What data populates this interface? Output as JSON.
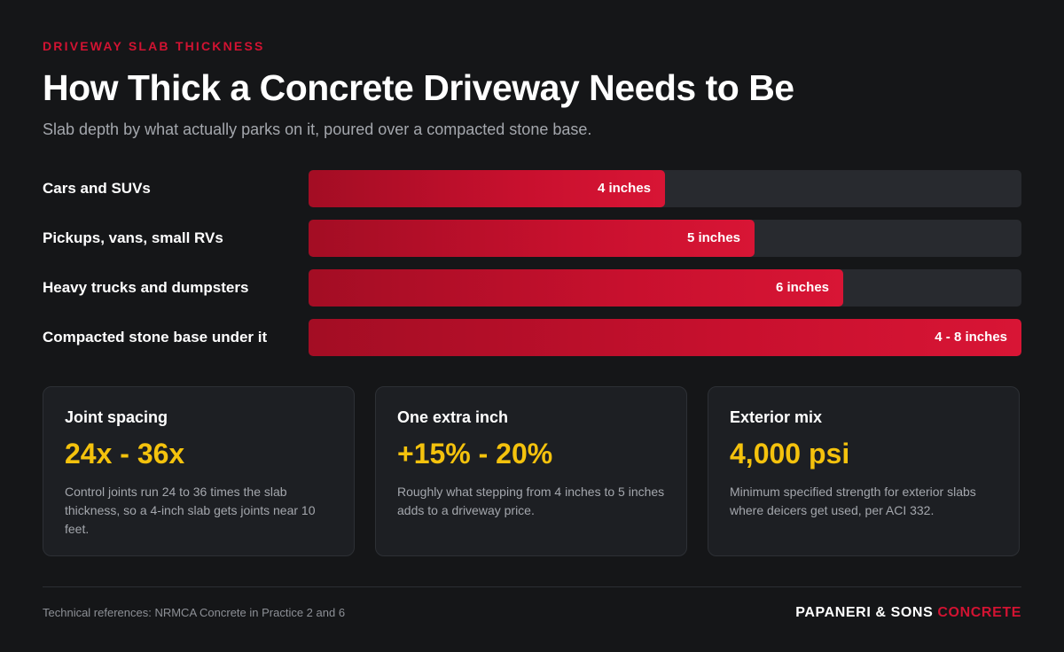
{
  "header": {
    "eyebrow": "DRIVEWAY SLAB THICKNESS",
    "title": "How Thick a Concrete Driveway Needs to Be",
    "subtitle": "Slab depth by what actually parks on it, poured over a compacted stone base."
  },
  "chart_data": {
    "type": "bar",
    "orientation": "horizontal",
    "categories": [
      "Cars and SUVs",
      "Pickups, vans, small RVs",
      "Heavy trucks and dumpsters",
      "Compacted stone base under it"
    ],
    "values": [
      4,
      5,
      6,
      8
    ],
    "data_labels": [
      "4 inches",
      "5 inches",
      "6 inches",
      "4 - 8 inches"
    ],
    "xlim": [
      0,
      8
    ],
    "grid": false,
    "bar_color": "#c8102e",
    "track_color": "#282a2f"
  },
  "cards": [
    {
      "title": "Joint spacing",
      "value": "24x - 36x",
      "desc": "Control joints run 24 to 36 times the slab thickness, so a 4-inch slab gets joints near 10 feet."
    },
    {
      "title": "One extra inch",
      "value": "+15% - 20%",
      "desc": "Roughly what stepping from 4 inches to 5 inches adds to a driveway price."
    },
    {
      "title": "Exterior mix",
      "value": "4,000 psi",
      "desc": "Minimum specified strength for exterior slabs where deicers get used, per ACI 332."
    }
  ],
  "footer": {
    "note": "Technical references: NRMCA Concrete in Practice 2 and 6",
    "brand_main": "PAPANERI & SONS",
    "brand_accent": "CONCRETE"
  },
  "colors": {
    "accent_red": "#d21332",
    "value_yellow": "#f4c20d",
    "background": "#151618"
  }
}
